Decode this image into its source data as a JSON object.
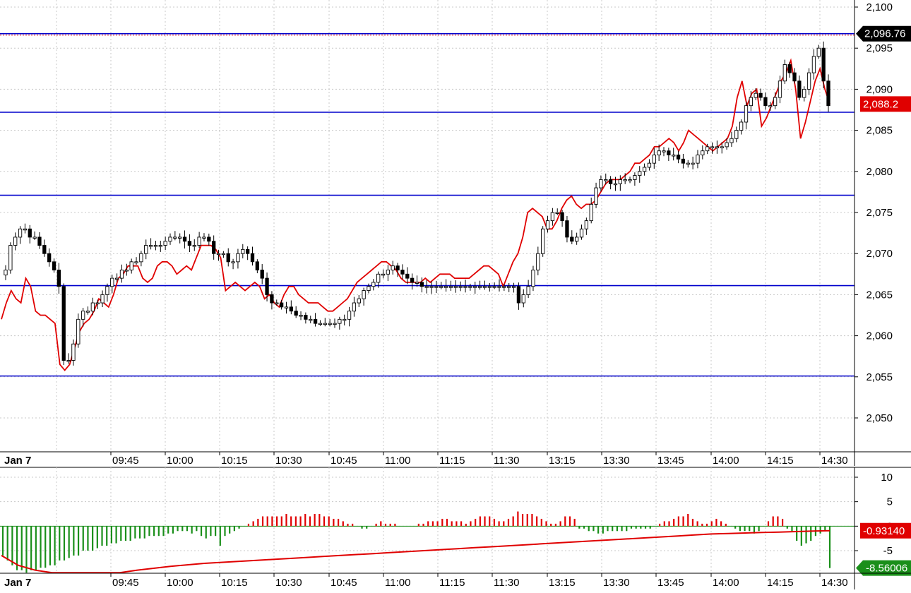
{
  "chart_data": [
    {
      "type": "candlestick",
      "panel": "price",
      "title": "",
      "ylim": [
        2045,
        2101
      ],
      "y_ticks": [
        "2,100",
        "2,095",
        "2,090",
        "2,085",
        "2,080",
        "2,075",
        "2,070",
        "2,065",
        "2,060",
        "2,055",
        "2,050"
      ],
      "y_tick_values": [
        2100,
        2095,
        2090,
        2085,
        2080,
        2075,
        2070,
        2065,
        2060,
        2055,
        2050
      ],
      "x_labels": [
        "Jan 7",
        "09:45",
        "10:00",
        "10:15",
        "10:30",
        "10:45",
        "11:00",
        "11:15",
        "11:30",
        "13:15",
        "13:30",
        "13:45",
        "14:00",
        "14:15",
        "14:30"
      ],
      "horizontal_lines": [
        2096.76,
        2087.2,
        2077.1,
        2066.1,
        2055.1
      ],
      "price_badges": [
        {
          "text": "2,096.76",
          "value": 2096.76,
          "color": "#000000"
        },
        {
          "text": "2,088.2",
          "value": 2088.2,
          "color": "#e00000"
        }
      ],
      "close_path": [
        2068,
        2071,
        2072,
        2073,
        2073,
        2072,
        2072,
        2071,
        2070,
        2069,
        2068,
        2066,
        2057,
        2057,
        2059,
        2062,
        2063,
        2063,
        2064,
        2064,
        2065,
        2066,
        2067,
        2067,
        2068,
        2068,
        2069,
        2069,
        2070,
        2071,
        2071,
        2071,
        2071,
        2071.5,
        2072,
        2072,
        2072,
        2071.5,
        2071,
        2071,
        2072,
        2072,
        2071.5,
        2070,
        2070,
        2070,
        2069,
        2069,
        2070,
        2070.5,
        2070,
        2069,
        2068,
        2067,
        2065,
        2064,
        2064,
        2063.5,
        2063.5,
        2063,
        2062.5,
        2062.5,
        2062,
        2062,
        2061.5,
        2061.5,
        2061.5,
        2061.5,
        2061.5,
        2062,
        2062,
        2063,
        2064,
        2064.5,
        2065.5,
        2066,
        2066.5,
        2067.5,
        2067.5,
        2068,
        2068.5,
        2068,
        2067.5,
        2067,
        2066.5,
        2066.5,
        2066,
        2066,
        2066,
        2066,
        2066,
        2066,
        2066,
        2066,
        2066,
        2066,
        2066,
        2066,
        2066,
        2066,
        2066,
        2066,
        2066,
        2066,
        2066,
        2066,
        2064,
        2065,
        2066,
        2068,
        2070,
        2073,
        2074,
        2075,
        2075,
        2074,
        2072,
        2071.5,
        2072,
        2073,
        2074,
        2076,
        2078,
        2079,
        2079,
        2078.5,
        2078.5,
        2079,
        2079,
        2079,
        2079.5,
        2080,
        2080.5,
        2081,
        2082,
        2082.5,
        2082.5,
        2082,
        2082,
        2081.5,
        2081,
        2081,
        2081,
        2082,
        2082.5,
        2083,
        2083,
        2083,
        2083,
        2083.5,
        2084,
        2085,
        2086,
        2088,
        2089,
        2089.5,
        2089,
        2088,
        2088,
        2089,
        2091,
        2093,
        2092,
        2091,
        2089,
        2090,
        2092,
        2094,
        2095,
        2091,
        2088
      ],
      "red_line": [
        2062,
        2064,
        2065.5,
        2064.5,
        2064,
        2067,
        2066,
        2063,
        2062.5,
        2062.5,
        2062,
        2061.5,
        2056.5,
        2055.8,
        2056.5,
        2058.5,
        2060.5,
        2061.5,
        2062,
        2063,
        2064.5,
        2064,
        2063.5,
        2065,
        2067,
        2067.5,
        2068.5,
        2068.5,
        2068.5,
        2067,
        2066.5,
        2067,
        2068.5,
        2069,
        2069,
        2068.5,
        2067.5,
        2068,
        2068.5,
        2068,
        2069.5,
        2071,
        2071,
        2071,
        2070.5,
        2069.5,
        2065.5,
        2066,
        2066.5,
        2066,
        2065.5,
        2066,
        2066.5,
        2066,
        2064.5,
        2065,
        2064,
        2063.5,
        2065,
        2066,
        2066,
        2065,
        2064.5,
        2064,
        2064,
        2064,
        2063.5,
        2063,
        2063,
        2063.5,
        2064,
        2064.5,
        2065.5,
        2066.5,
        2067,
        2067.5,
        2068,
        2068.5,
        2069,
        2069,
        2068.5,
        2068,
        2067,
        2066.5,
        2066.5,
        2066.5,
        2066.5,
        2067,
        2066.5,
        2067,
        2067.5,
        2067.5,
        2067.5,
        2067,
        2067,
        2067,
        2067,
        2067.5,
        2068,
        2068.5,
        2068.5,
        2068,
        2067.5,
        2066,
        2067.5,
        2069,
        2070,
        2072,
        2075,
        2075.5,
        2075,
        2074.5,
        2073,
        2073,
        2074,
        2075.5,
        2076.5,
        2077,
        2076,
        2075.5,
        2076,
        2076,
        2076.5,
        2077.5,
        2078.5,
        2079,
        2079,
        2079,
        2079.5,
        2080,
        2081,
        2081,
        2081.5,
        2082,
        2083,
        2083,
        2083.5,
        2084,
        2083.5,
        2082.5,
        2083.5,
        2085,
        2084.5,
        2084,
        2083.5,
        2083,
        2082.5,
        2083,
        2083.5,
        2084,
        2085.5,
        2089,
        2091,
        2088,
        2089.5,
        2090,
        2085.5,
        2086.5,
        2088,
        2089.5,
        2091,
        2092,
        2093.5,
        2090,
        2084,
        2086,
        2088.5,
        2091,
        2092.5,
        2090,
        2088.2
      ],
      "up_color": "#ffffff",
      "down_color": "#000000",
      "line_color": "#e00000",
      "level_line_color": "#0000cc"
    },
    {
      "type": "histogram",
      "panel": "oscillator",
      "ylim": [
        -11,
        12
      ],
      "y_ticks": [
        "10",
        "5",
        "0",
        "-5"
      ],
      "y_tick_values": [
        10,
        5,
        0,
        -5
      ],
      "x_labels": [
        "Jan 7",
        "09:45",
        "10:00",
        "10:15",
        "10:30",
        "10:45",
        "11:00",
        "11:15",
        "11:30",
        "13:15",
        "13:30",
        "13:45",
        "14:00",
        "14:15",
        "14:30"
      ],
      "values": [
        -6,
        -7,
        -8,
        -9,
        -9,
        -9.5,
        -9,
        -9,
        -8.5,
        -8.5,
        -8,
        -8,
        -7,
        -7,
        -6.5,
        -6,
        -6,
        -5,
        -5,
        -5,
        -4.5,
        -4,
        -4,
        -3.5,
        -3.5,
        -3,
        -3,
        -3,
        -2.5,
        -2.5,
        -2.5,
        -2,
        -2,
        -2,
        -2,
        -1.5,
        -1.5,
        -1,
        -1,
        -1,
        -1.5,
        -1,
        -2,
        -2.5,
        -2,
        -2,
        -4,
        -2,
        -1.5,
        -1,
        -0.5,
        0,
        0.5,
        1,
        1.5,
        2,
        2,
        2,
        2,
        2,
        2.5,
        2,
        2,
        2,
        2.5,
        2,
        2.5,
        2.5,
        2,
        2,
        1.5,
        1.5,
        1,
        0.5,
        0.5,
        0,
        -0.5,
        -0.5,
        0,
        0.5,
        1,
        0.5,
        0.5,
        0.5,
        0,
        0,
        0,
        0,
        0.5,
        0.5,
        1,
        1,
        1,
        1.5,
        1.5,
        1,
        1,
        1,
        0.5,
        1,
        1.5,
        2,
        2,
        2,
        1.5,
        1,
        1,
        1.5,
        2,
        3,
        2.5,
        2.5,
        2.5,
        2,
        1.5,
        1,
        0.5,
        0.5,
        1,
        2,
        2,
        1.5,
        -0.5,
        -0.5,
        -1,
        -1,
        -1.5,
        -1.5,
        -1,
        -1,
        -1,
        -1,
        -1,
        -0.5,
        -0.5,
        -0.5,
        -0.5,
        -0.5,
        0,
        0.5,
        1,
        1,
        1.5,
        2,
        2,
        2.5,
        1.5,
        1,
        0.5,
        0.5,
        1,
        1.5,
        1,
        0.5,
        0,
        -0.5,
        -1,
        -1,
        -1,
        -1.5,
        -1,
        0,
        1,
        2,
        2,
        1.5,
        -0.5,
        -1,
        -3,
        -4,
        -3.5,
        -3,
        -2,
        -1.5,
        -1,
        -8.56
      ],
      "signal_line": [
        -6,
        -8,
        -9,
        -9.5,
        -9.5,
        -9.5,
        -9.5,
        -9.5,
        -9,
        -8.6,
        -8.2,
        -7.9,
        -7.6,
        -7.4,
        -7.2,
        -7.0,
        -6.8,
        -6.6,
        -6.4,
        -6.2,
        -6.0,
        -5.8,
        -5.6,
        -5.4,
        -5.2,
        -5.0,
        -4.8,
        -4.6,
        -4.4,
        -4.2,
        -4.0,
        -3.8,
        -3.6,
        -3.4,
        -3.2,
        -3.0,
        -2.8,
        -2.6,
        -2.4,
        -2.2,
        -2.0,
        -1.8,
        -1.6,
        -1.5,
        -1.4,
        -1.3,
        -1.2,
        -1.1,
        -1.0,
        -0.93
      ],
      "bar_pos_color": "#e00000",
      "bar_neg_color": "#1a8f1a",
      "signal_color": "#e00000",
      "value_badges": [
        {
          "text": "-0.93140",
          "value": -0.9314,
          "color": "#e00000"
        },
        {
          "text": "-8.56006",
          "value": -8.56006,
          "color": "#1a8f1a"
        }
      ]
    }
  ]
}
